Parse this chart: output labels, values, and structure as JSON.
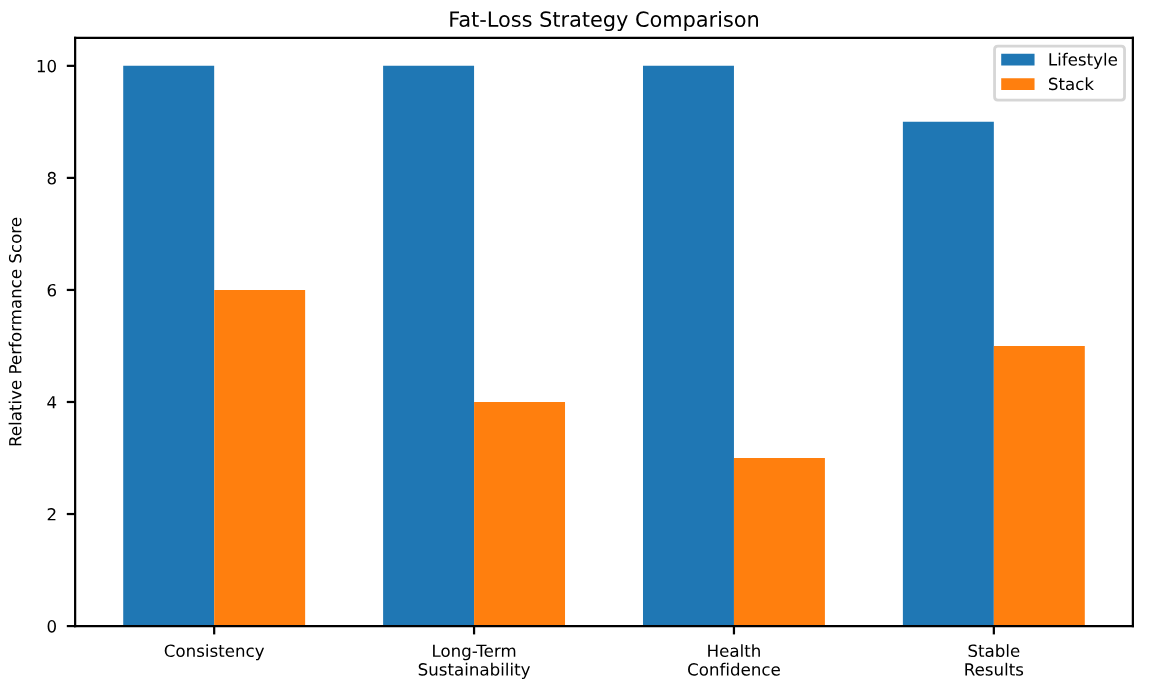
{
  "chart_data": {
    "type": "bar",
    "title": "Fat-Loss Strategy Comparison",
    "ylabel": "Relative Performance Score",
    "categories": [
      "Consistency",
      "Long-Term\nSustainability",
      "Health\nConfidence",
      "Stable\nResults"
    ],
    "series": [
      {
        "name": "Lifestyle",
        "color": "#1f77b4",
        "values": [
          10,
          10,
          10,
          9
        ]
      },
      {
        "name": "Stack",
        "color": "#ff7f0e",
        "values": [
          6,
          4,
          3,
          5
        ]
      }
    ],
    "ylim": [
      0,
      10.5
    ],
    "yticks": [
      0,
      2,
      4,
      6,
      8,
      10
    ],
    "grid": false,
    "legend": "top right"
  }
}
